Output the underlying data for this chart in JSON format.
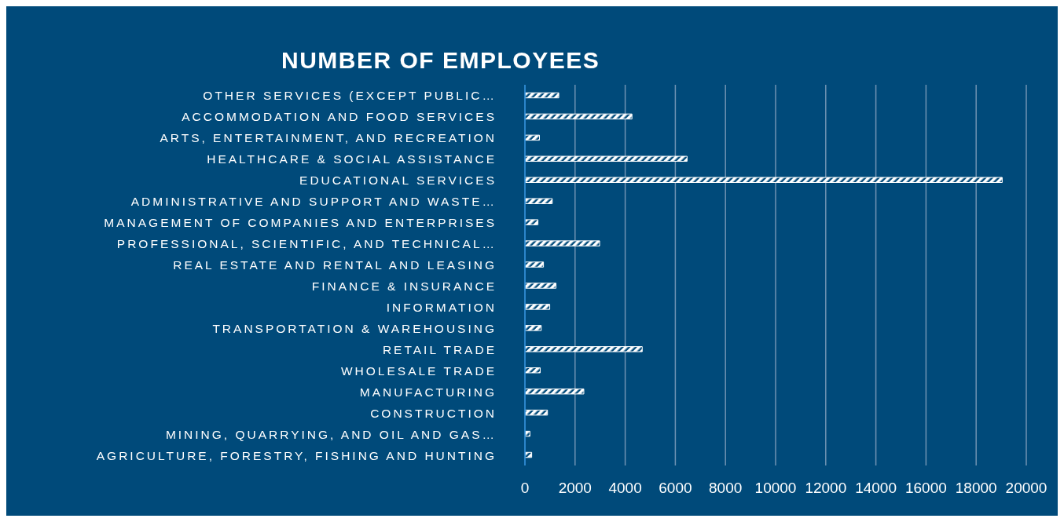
{
  "chart_data": {
    "type": "bar",
    "orientation": "horizontal",
    "title": "NUMBER OF EMPLOYEES",
    "categories": [
      "OTHER SERVICES (EXCEPT PUBLIC…",
      "ACCOMMODATION AND FOOD SERVICES",
      "ARTS, ENTERTAINMENT, AND RECREATION",
      "HEALTHCARE & SOCIAL ASSISTANCE",
      "EDUCATIONAL SERVICES",
      "ADMINISTRATIVE AND SUPPORT AND WASTE…",
      "MANAGEMENT OF COMPANIES AND ENTERPRISES",
      "PROFESSIONAL, SCIENTIFIC, AND TECHNICAL…",
      "REAL ESTATE AND RENTAL AND LEASING",
      "FINANCE & INSURANCE",
      "INFORMATION",
      "TRANSPORTATION & WAREHOUSING",
      "RETAIL TRADE",
      "WHOLESALE TRADE",
      "MANUFACTURING",
      "CONSTRUCTION",
      "MINING, QUARRYING, AND OIL AND GAS…",
      "AGRICULTURE, FORESTRY, FISHING AND HUNTING"
    ],
    "values": [
      1350,
      4270,
      580,
      6470,
      19040,
      1090,
      520,
      2980,
      740,
      1240,
      990,
      650,
      4680,
      610,
      2350,
      900,
      200,
      270
    ],
    "color": "#ffffff",
    "xlim": [
      0,
      20000
    ],
    "xticks": [
      0,
      2000,
      4000,
      6000,
      8000,
      10000,
      12000,
      14000,
      16000,
      18000,
      20000
    ],
    "grid": "x"
  }
}
